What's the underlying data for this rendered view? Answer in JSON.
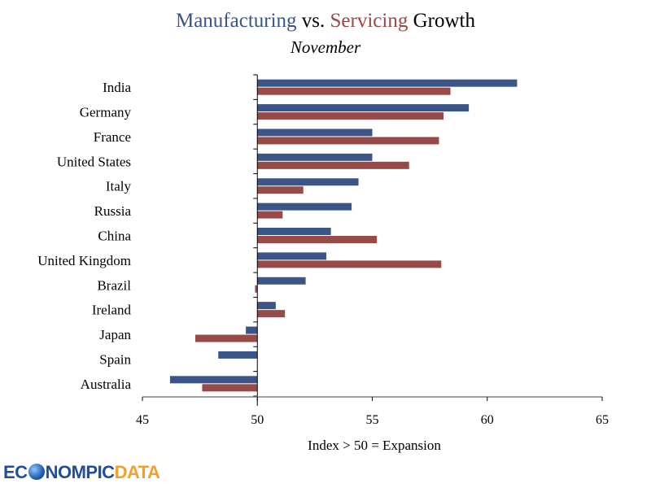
{
  "title": {
    "part1": "Manufacturing",
    "part2": " vs. ",
    "part3": "Servicing",
    "part4": " Growth"
  },
  "subtitle": "November",
  "logo": {
    "prefix": "EC",
    "middle": "NOMPIC",
    "suffix": "DATA"
  },
  "colors": {
    "manufacturing": "#3b5587",
    "servicing": "#974a47"
  },
  "chart_data": {
    "type": "bar",
    "orientation": "horizontal",
    "title": "Manufacturing vs. Servicing Growth",
    "subtitle": "November",
    "xlabel": "Index > 50 = Expansion",
    "ylabel": "",
    "xlim": [
      45,
      65
    ],
    "baseline": 50,
    "xticks": [
      45,
      50,
      55,
      60,
      65
    ],
    "grid": false,
    "legend": "none (encoded in title colors)",
    "categories": [
      "India",
      "Germany",
      "France",
      "United States",
      "Italy",
      "Russia",
      "China",
      "United Kingdom",
      "Brazil",
      "Ireland",
      "Japan",
      "Spain",
      "Australia"
    ],
    "series": [
      {
        "name": "Manufacturing",
        "color": "#3b5587",
        "values": [
          61.3,
          59.2,
          55.0,
          55.0,
          54.4,
          54.1,
          53.2,
          53.0,
          52.1,
          50.8,
          49.5,
          48.3,
          46.2
        ]
      },
      {
        "name": "Servicing",
        "color": "#974a47",
        "values": [
          58.4,
          58.1,
          57.9,
          56.6,
          52.0,
          51.1,
          55.2,
          58.0,
          49.9,
          51.2,
          47.3,
          null,
          47.6
        ]
      }
    ]
  }
}
